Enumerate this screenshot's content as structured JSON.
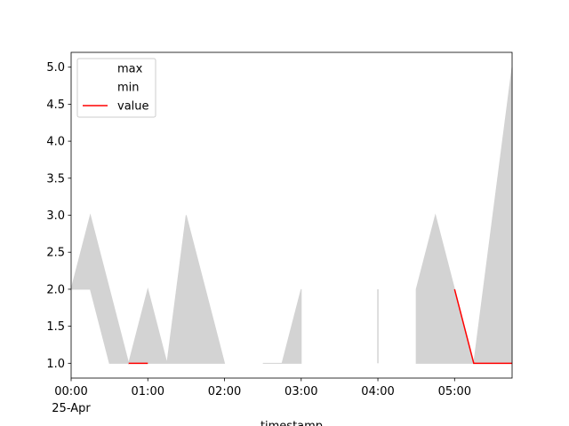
{
  "chart_data": {
    "type": "fill_between_line",
    "x_label": "timestamp",
    "x": [
      "00:00",
      "00:15",
      "00:30",
      "00:45",
      "01:00",
      "01:15",
      "01:30",
      "01:45",
      "02:00",
      "02:15",
      "02:30",
      "02:45",
      "03:00",
      "03:15",
      "03:30",
      "03:45",
      "04:00",
      "04:15",
      "04:30",
      "04:45",
      "05:00",
      "05:15",
      "05:30",
      "05:45"
    ],
    "date_label": "25-Apr",
    "series": [
      {
        "name": "max",
        "color": "lightgray",
        "values": [
          2,
          3,
          2,
          1,
          2,
          1,
          3,
          2,
          1,
          null,
          1,
          1,
          2,
          null,
          null,
          null,
          2,
          null,
          2,
          3,
          2,
          1,
          3,
          5
        ]
      },
      {
        "name": "min",
        "color": "lightgray",
        "values": [
          2,
          2,
          1,
          1,
          1,
          1,
          1,
          1,
          1,
          null,
          1,
          1,
          1,
          null,
          null,
          null,
          1,
          null,
          1,
          1,
          1,
          1,
          1,
          1
        ]
      },
      {
        "name": "value",
        "color": "red",
        "values": [
          null,
          null,
          null,
          1,
          1,
          null,
          null,
          null,
          null,
          null,
          null,
          null,
          null,
          null,
          null,
          null,
          null,
          null,
          null,
          null,
          2,
          1,
          1,
          1
        ]
      }
    ],
    "xlim": [
      "00:00",
      "05:45"
    ],
    "xticks": [
      "00:00",
      "01:00",
      "02:00",
      "03:00",
      "04:00",
      "05:00"
    ],
    "ylim": [
      0.8,
      5.2
    ],
    "yticks": [
      {
        "value": 1,
        "label": "1.0"
      },
      {
        "value": 1.5,
        "label": "1.5"
      },
      {
        "value": 2,
        "label": "2.0"
      },
      {
        "value": 2.5,
        "label": "2.5"
      },
      {
        "value": 3,
        "label": "3.0"
      },
      {
        "value": 3.5,
        "label": "3.5"
      },
      {
        "value": 4,
        "label": "4.0"
      },
      {
        "value": 4.5,
        "label": "4.5"
      },
      {
        "value": 5,
        "label": "5.0"
      }
    ],
    "legend": "upper left"
  }
}
